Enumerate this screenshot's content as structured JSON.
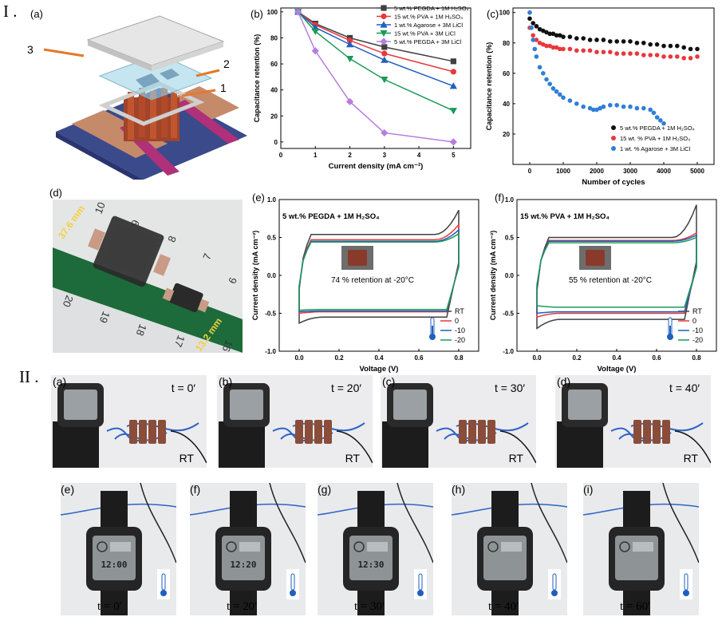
{
  "section_labels": {
    "one": "I .",
    "two": "II ."
  },
  "panel_labels": {
    "a": "(a)",
    "b": "(b)",
    "c": "(c)",
    "d": "(d)",
    "e": "(e)",
    "f": "(f)"
  },
  "device_callouts": [
    "1",
    "2",
    "3"
  ],
  "ruler_labels": {
    "length1": "37.6 mm",
    "length2": "13.2 mm",
    "numbers": [
      "10",
      "9",
      "8",
      "7",
      "6",
      "20",
      "19",
      "18",
      "17",
      "16"
    ]
  },
  "colors": {
    "black": "#404040",
    "red": "#e8383b",
    "blue": "#1f5fbf",
    "green": "#1a9a5a",
    "violet": "#b57ee0",
    "watch": "#1c1c1c",
    "board_green": "#1d6b3a"
  },
  "chart_data": [
    {
      "id": "b",
      "type": "line",
      "xlabel": "Current density (mA cm⁻²)",
      "ylabel": "Capacitance retention (%)",
      "xlim": [
        0,
        5.5
      ],
      "ylim": [
        -5,
        103
      ],
      "xticks": [
        "0",
        "1",
        "2",
        "3",
        "4",
        "5"
      ],
      "yticks": [
        "0",
        "20",
        "40",
        "60",
        "80",
        "100"
      ],
      "x": [
        0.5,
        1,
        2,
        3,
        5
      ],
      "legend_position": "top-right",
      "series": [
        {
          "name": "5 wt.% PEGDA + 1M H₂SO₄",
          "marker": "square",
          "color": "#404040",
          "values": [
            100,
            91,
            80,
            73,
            62
          ]
        },
        {
          "name": "15 wt.% PVA + 1M H₂SO₄",
          "marker": "circle",
          "color": "#e8383b",
          "values": [
            100,
            90,
            78,
            68,
            54
          ]
        },
        {
          "name": "1 wt.% Agarose + 3M LiCl",
          "marker": "triangle-up",
          "color": "#1f5fbf",
          "values": [
            100,
            88,
            75,
            63,
            43
          ]
        },
        {
          "name": "15 wt.% PVA + 3M LiCl",
          "marker": "triangle-down",
          "color": "#1a9a5a",
          "values": [
            100,
            85,
            64,
            48,
            24
          ]
        },
        {
          "name": "5 wt.% PEGDA + 3M LiCl",
          "marker": "diamond",
          "color": "#b57ee0",
          "values": [
            100,
            70,
            31,
            7,
            0
          ]
        }
      ]
    },
    {
      "id": "c",
      "type": "scatter",
      "xlabel": "Number of cycles",
      "ylabel": "Capacitance retention (%)",
      "xlim": [
        -500,
        5500
      ],
      "ylim": [
        0,
        103
      ],
      "xticks": [
        "0",
        "1000",
        "2000",
        "3000",
        "4000",
        "5000"
      ],
      "yticks": [
        "20",
        "40",
        "60",
        "80",
        "100"
      ],
      "legend_position": "bottom-right",
      "series": [
        {
          "name": "5 wt.% PEGDA + 1M H₂SO₄",
          "color": "#111111",
          "x": [
            0,
            100,
            200,
            300,
            400,
            500,
            600,
            700,
            800,
            900,
            1000,
            1200,
            1400,
            1600,
            1800,
            2000,
            2200,
            2400,
            2600,
            2800,
            3000,
            3200,
            3400,
            3600,
            3800,
            4000,
            4200,
            4400,
            4600,
            4800,
            5000
          ],
          "values": [
            96,
            93,
            91,
            89,
            88,
            87,
            86,
            86,
            85,
            85,
            84,
            84,
            83,
            83,
            82,
            82,
            82,
            81,
            81,
            81,
            81,
            80,
            80,
            79,
            79,
            78,
            78,
            78,
            77,
            76,
            76
          ]
        },
        {
          "name": "15 wt. % PVA + 1M H₂SO₄",
          "color": "#e8383b",
          "x": [
            0,
            100,
            200,
            300,
            400,
            500,
            600,
            700,
            800,
            900,
            1000,
            1200,
            1400,
            1600,
            1800,
            2000,
            2200,
            2400,
            2600,
            2800,
            3000,
            3200,
            3400,
            3600,
            3800,
            4000,
            4200,
            4400,
            4600,
            4800,
            5000
          ],
          "values": [
            90,
            85,
            82,
            80,
            79,
            78,
            78,
            77,
            77,
            76,
            76,
            76,
            75,
            75,
            75,
            74,
            74,
            74,
            73,
            73,
            73,
            73,
            72,
            72,
            72,
            71,
            71,
            71,
            70,
            70,
            71
          ]
        },
        {
          "name": "1 wt. % Agarose + 3M LiCl",
          "color": "#2f7fd6",
          "x": [
            0,
            50,
            100,
            150,
            200,
            300,
            400,
            500,
            600,
            700,
            800,
            900,
            1000,
            1200,
            1400,
            1600,
            1800,
            1900,
            2000,
            2100,
            2200,
            2400,
            2600,
            2800,
            3000,
            3200,
            3400,
            3600,
            3700,
            3800,
            3900,
            4000
          ],
          "values": [
            100,
            90,
            82,
            76,
            71,
            64,
            60,
            56,
            53,
            50,
            48,
            46,
            44,
            42,
            40,
            38,
            37,
            36,
            36,
            37,
            38,
            39,
            39,
            38,
            38,
            37,
            37,
            36,
            34,
            31,
            29,
            27
          ]
        }
      ]
    },
    {
      "id": "e",
      "type": "line",
      "title": "5 wt.% PEGDA + 1M H₂SO₄",
      "annotation": "74 % retention at -20°C",
      "xlabel": "Voltage (V)",
      "ylabel": "Current density (mA cm⁻²)",
      "xlim": [
        -0.1,
        0.9
      ],
      "ylim": [
        -1.0,
        1.0
      ],
      "xticks": [
        "0.0",
        "0.2",
        "0.4",
        "0.6",
        "0.8"
      ],
      "yticks": [
        "-1.0",
        "-0.5",
        "0.0",
        "0.5",
        "1.0"
      ],
      "legend_position": "bottom-right",
      "series": [
        {
          "name": "RT",
          "color": "#404040",
          "jtop": 0.54,
          "jbot": -0.55,
          "jend": 0.86,
          "jstart": -0.63
        },
        {
          "name": "0",
          "color": "#e8383b",
          "jtop": 0.47,
          "jbot": -0.48,
          "jend": 0.67,
          "jstart": -0.5
        },
        {
          "name": "-10",
          "color": "#1f5fbf",
          "jtop": 0.45,
          "jbot": -0.47,
          "jend": 0.6,
          "jstart": -0.48
        },
        {
          "name": "-20",
          "color": "#1a9a5a",
          "jtop": 0.44,
          "jbot": -0.45,
          "jend": 0.55,
          "jstart": -0.46
        }
      ]
    },
    {
      "id": "f",
      "type": "line",
      "title": "15 wt.% PVA + 1M H₂SO₄",
      "annotation": "55 % retention at -20°C",
      "xlabel": "Voltage (V)",
      "ylabel": "Current density (mA cm⁻²)",
      "xlim": [
        -0.1,
        0.9
      ],
      "ylim": [
        -1.0,
        1.0
      ],
      "xticks": [
        "0.0",
        "0.2",
        "0.4",
        "0.6",
        "0.8"
      ],
      "yticks": [
        "-1.0",
        "-0.5",
        "0.0",
        "0.5",
        "1.0"
      ],
      "legend_position": "bottom-right",
      "series": [
        {
          "name": "RT",
          "color": "#404040",
          "jtop": 0.5,
          "jbot": -0.58,
          "jend": 0.93,
          "jstart": -0.7
        },
        {
          "name": "0",
          "color": "#e8383b",
          "jtop": 0.46,
          "jbot": -0.5,
          "jend": 0.56,
          "jstart": -0.55
        },
        {
          "name": "-10",
          "color": "#1f5fbf",
          "jtop": 0.45,
          "jbot": -0.48,
          "jend": 0.53,
          "jstart": -0.5
        },
        {
          "name": "-20",
          "color": "#1a9a5a",
          "jtop": 0.43,
          "jbot": -0.42,
          "jend": 0.5,
          "jstart": -0.4
        }
      ]
    }
  ],
  "photos_rt": [
    {
      "label": "(a)",
      "time": "t = 0′",
      "cond": "RT"
    },
    {
      "label": "(b)",
      "time": "t = 20′",
      "cond": "RT"
    },
    {
      "label": "(c)",
      "time": "t = 30′",
      "cond": "RT"
    },
    {
      "label": "(d)",
      "time": "t = 40′",
      "cond": "RT"
    }
  ],
  "photos_cold": [
    {
      "label": "(e)",
      "time": "t = 0′",
      "clock": "12:00"
    },
    {
      "label": "(f)",
      "time": "t = 20′",
      "clock": "12:20"
    },
    {
      "label": "(g)",
      "time": "t = 30′",
      "clock": "12:30"
    },
    {
      "label": "(h)",
      "time": "t = 40′",
      "clock": ""
    },
    {
      "label": "(i)",
      "time": "t = 60′",
      "clock": ""
    }
  ]
}
